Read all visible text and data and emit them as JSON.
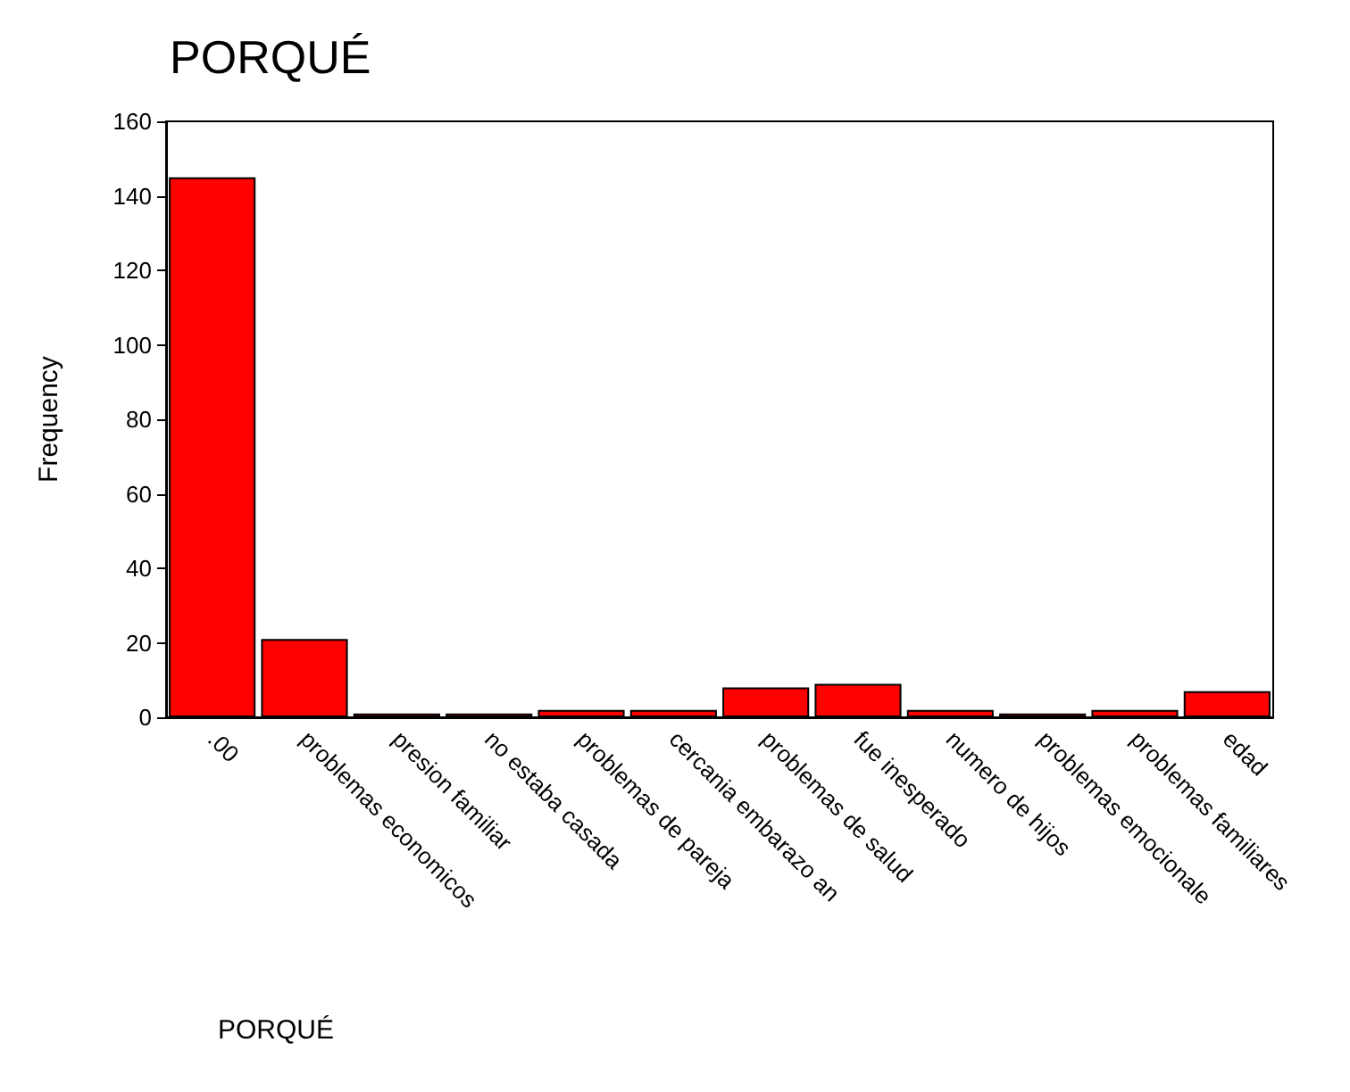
{
  "chart_data": {
    "type": "bar",
    "title": "PORQUÉ",
    "xlabel": "PORQUÉ",
    "ylabel": "Frequency",
    "categories": [
      ".00",
      "problemas economicos",
      "presion familiar",
      "no estaba casada",
      "problemas de pareja",
      "cercania embarazo an",
      "problemas de salud",
      "fue inesperado",
      "numero de hijos",
      "problemas emocionale",
      "problemas familiares",
      "edad"
    ],
    "values": [
      145,
      21,
      1,
      1,
      2,
      2,
      8,
      9,
      2,
      1,
      2,
      7
    ],
    "color": "#ff0000",
    "ylim": [
      0,
      160
    ],
    "yticks": [
      0,
      20,
      40,
      60,
      80,
      100,
      120,
      140,
      160
    ],
    "grid": false
  }
}
